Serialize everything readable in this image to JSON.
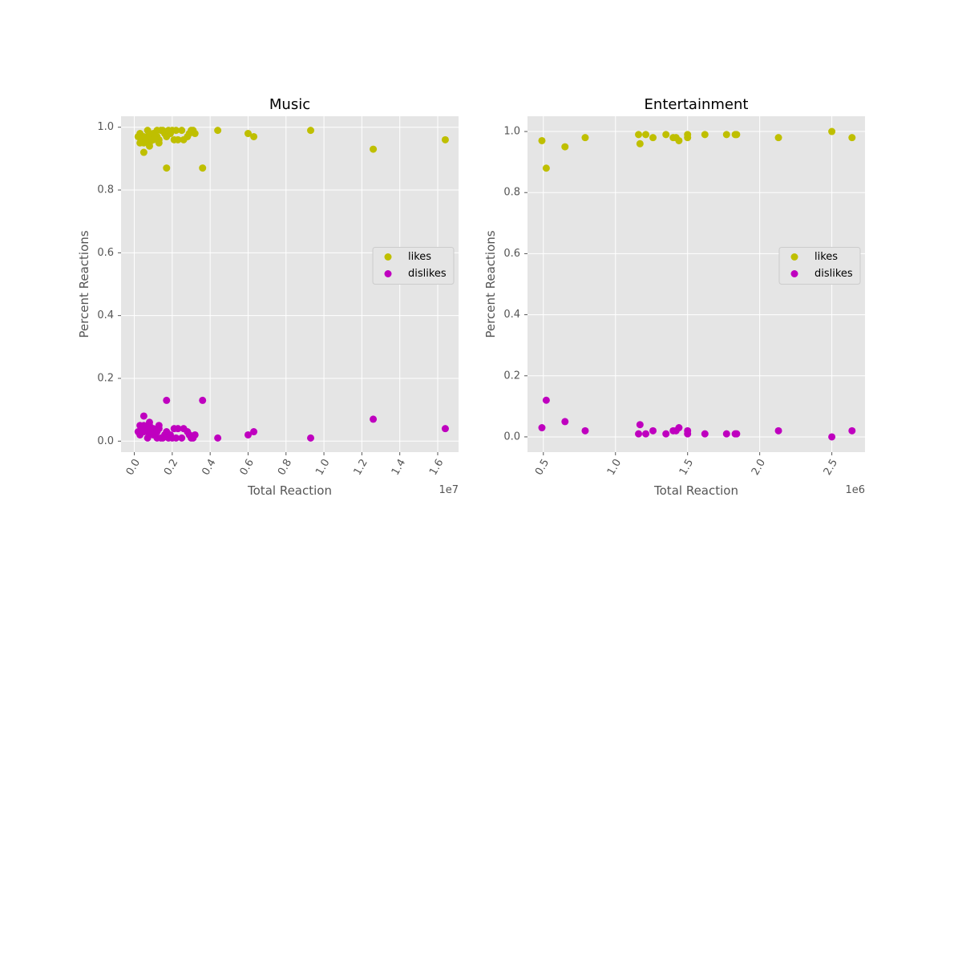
{
  "chart_data": [
    {
      "type": "scatter",
      "title": "Music",
      "xlabel": "Total Reaction",
      "ylabel": "Percent Reactions",
      "x_offset_label": "1e7",
      "xlim": [
        -0.07,
        1.71
      ],
      "ylim": [
        -0.035,
        1.035
      ],
      "xticks": [
        0.0,
        0.2,
        0.4,
        0.6,
        0.8,
        1.0,
        1.2,
        1.4,
        1.6
      ],
      "xtick_labels": [
        "0.0",
        "0.2",
        "0.4",
        "0.6",
        "0.8",
        "1.0",
        "1.2",
        "1.4",
        "1.6"
      ],
      "yticks": [
        0.0,
        0.2,
        0.4,
        0.6,
        0.8,
        1.0
      ],
      "ytick_labels": [
        "0.0",
        "0.2",
        "0.4",
        "0.6",
        "0.8",
        "1.0"
      ],
      "grid": true,
      "legend_position": "center-right",
      "series": [
        {
          "name": "likes",
          "color": "#bfbf00",
          "points": [
            [
              0.02,
              0.97
            ],
            [
              0.03,
              0.98
            ],
            [
              0.03,
              0.95
            ],
            [
              0.04,
              0.96
            ],
            [
              0.05,
              0.97
            ],
            [
              0.05,
              0.95
            ],
            [
              0.06,
              0.96
            ],
            [
              0.07,
              0.97
            ],
            [
              0.05,
              0.92
            ],
            [
              0.07,
              0.99
            ],
            [
              0.08,
              0.98
            ],
            [
              0.08,
              0.95
            ],
            [
              0.08,
              0.94
            ],
            [
              0.09,
              0.96
            ],
            [
              0.09,
              0.97
            ],
            [
              0.1,
              0.98
            ],
            [
              0.1,
              0.96
            ],
            [
              0.11,
              0.97
            ],
            [
              0.12,
              0.99
            ],
            [
              0.12,
              0.97
            ],
            [
              0.13,
              0.96
            ],
            [
              0.13,
              0.95
            ],
            [
              0.14,
              0.99
            ],
            [
              0.15,
              0.99
            ],
            [
              0.16,
              0.98
            ],
            [
              0.17,
              0.97
            ],
            [
              0.17,
              0.87
            ],
            [
              0.18,
              0.99
            ],
            [
              0.19,
              0.98
            ],
            [
              0.2,
              0.99
            ],
            [
              0.21,
              0.96
            ],
            [
              0.22,
              0.99
            ],
            [
              0.23,
              0.96
            ],
            [
              0.25,
              0.99
            ],
            [
              0.26,
              0.96
            ],
            [
              0.28,
              0.97
            ],
            [
              0.29,
              0.98
            ],
            [
              0.3,
              0.99
            ],
            [
              0.31,
              0.99
            ],
            [
              0.32,
              0.98
            ],
            [
              0.36,
              0.87
            ],
            [
              0.44,
              0.99
            ],
            [
              0.6,
              0.98
            ],
            [
              0.63,
              0.97
            ],
            [
              0.93,
              0.99
            ],
            [
              1.26,
              0.93
            ],
            [
              1.64,
              0.96
            ]
          ]
        },
        {
          "name": "dislikes",
          "color": "#bf00bf",
          "points": [
            [
              0.02,
              0.03
            ],
            [
              0.03,
              0.02
            ],
            [
              0.03,
              0.05
            ],
            [
              0.04,
              0.04
            ],
            [
              0.05,
              0.03
            ],
            [
              0.05,
              0.05
            ],
            [
              0.06,
              0.04
            ],
            [
              0.07,
              0.03
            ],
            [
              0.05,
              0.08
            ],
            [
              0.07,
              0.01
            ],
            [
              0.08,
              0.02
            ],
            [
              0.08,
              0.05
            ],
            [
              0.08,
              0.06
            ],
            [
              0.09,
              0.04
            ],
            [
              0.09,
              0.03
            ],
            [
              0.1,
              0.02
            ],
            [
              0.1,
              0.04
            ],
            [
              0.11,
              0.03
            ],
            [
              0.12,
              0.01
            ],
            [
              0.12,
              0.03
            ],
            [
              0.13,
              0.04
            ],
            [
              0.13,
              0.05
            ],
            [
              0.14,
              0.01
            ],
            [
              0.15,
              0.01
            ],
            [
              0.16,
              0.02
            ],
            [
              0.17,
              0.03
            ],
            [
              0.17,
              0.13
            ],
            [
              0.18,
              0.01
            ],
            [
              0.19,
              0.02
            ],
            [
              0.2,
              0.01
            ],
            [
              0.21,
              0.04
            ],
            [
              0.22,
              0.01
            ],
            [
              0.23,
              0.04
            ],
            [
              0.25,
              0.01
            ],
            [
              0.26,
              0.04
            ],
            [
              0.28,
              0.03
            ],
            [
              0.29,
              0.02
            ],
            [
              0.3,
              0.01
            ],
            [
              0.31,
              0.01
            ],
            [
              0.32,
              0.02
            ],
            [
              0.36,
              0.13
            ],
            [
              0.44,
              0.01
            ],
            [
              0.6,
              0.02
            ],
            [
              0.63,
              0.03
            ],
            [
              0.93,
              0.01
            ],
            [
              1.26,
              0.07
            ],
            [
              1.64,
              0.04
            ]
          ]
        }
      ]
    },
    {
      "type": "scatter",
      "title": "Entertainment",
      "xlabel": "Total Reaction",
      "ylabel": "Percent Reactions",
      "x_offset_label": "1e6",
      "xlim": [
        0.39,
        2.73
      ],
      "ylim": [
        -0.05,
        1.05
      ],
      "xticks": [
        0.5,
        1.0,
        1.5,
        2.0,
        2.5
      ],
      "xtick_labels": [
        "0.5",
        "1.0",
        "1.5",
        "2.0",
        "2.5"
      ],
      "yticks": [
        0.0,
        0.2,
        0.4,
        0.6,
        0.8,
        1.0
      ],
      "ytick_labels": [
        "0.0",
        "0.2",
        "0.4",
        "0.6",
        "0.8",
        "1.0"
      ],
      "grid": true,
      "legend_position": "center-right",
      "series": [
        {
          "name": "likes",
          "color": "#bfbf00",
          "points": [
            [
              0.49,
              0.97
            ],
            [
              0.52,
              0.88
            ],
            [
              0.65,
              0.95
            ],
            [
              0.79,
              0.98
            ],
            [
              1.16,
              0.99
            ],
            [
              1.17,
              0.96
            ],
            [
              1.21,
              0.99
            ],
            [
              1.26,
              0.98
            ],
            [
              1.35,
              0.99
            ],
            [
              1.4,
              0.98
            ],
            [
              1.42,
              0.98
            ],
            [
              1.44,
              0.97
            ],
            [
              1.5,
              0.99
            ],
            [
              1.5,
              0.98
            ],
            [
              1.62,
              0.99
            ],
            [
              1.77,
              0.99
            ],
            [
              1.83,
              0.99
            ],
            [
              1.84,
              0.99
            ],
            [
              2.13,
              0.98
            ],
            [
              2.5,
              1.0
            ],
            [
              2.64,
              0.98
            ]
          ]
        },
        {
          "name": "dislikes",
          "color": "#bf00bf",
          "points": [
            [
              0.49,
              0.03
            ],
            [
              0.52,
              0.12
            ],
            [
              0.65,
              0.05
            ],
            [
              0.79,
              0.02
            ],
            [
              1.16,
              0.01
            ],
            [
              1.17,
              0.04
            ],
            [
              1.21,
              0.01
            ],
            [
              1.26,
              0.02
            ],
            [
              1.35,
              0.01
            ],
            [
              1.4,
              0.02
            ],
            [
              1.42,
              0.02
            ],
            [
              1.44,
              0.03
            ],
            [
              1.5,
              0.01
            ],
            [
              1.5,
              0.02
            ],
            [
              1.62,
              0.01
            ],
            [
              1.77,
              0.01
            ],
            [
              1.83,
              0.01
            ],
            [
              1.84,
              0.01
            ],
            [
              2.13,
              0.02
            ],
            [
              2.5,
              0.0
            ],
            [
              2.64,
              0.02
            ]
          ]
        }
      ]
    }
  ]
}
